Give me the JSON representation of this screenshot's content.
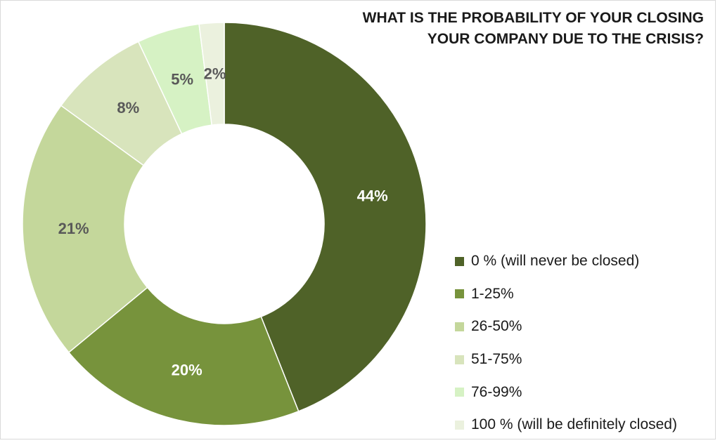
{
  "chart_data": {
    "type": "pie",
    "variant": "donut",
    "title": "WHAT IS THE PROBABILITY OF YOUR CLOSING YOUR COMPANY DUE TO THE CRISIS?",
    "title_lines": [
      "WHAT IS THE PROBABILITY OF YOUR CLOSING",
      "YOUR COMPANY DUE TO THE CRISIS?"
    ],
    "legend_position": "right",
    "slices": [
      {
        "label": "0 % (will never be closed)",
        "value": 44,
        "data_label": "44%",
        "color": "#4f6228",
        "label_color": "#ffffff"
      },
      {
        "label": "1-25%",
        "value": 20,
        "data_label": "20%",
        "color": "#77933c",
        "label_color": "#ffffff"
      },
      {
        "label": "26-50%",
        "value": 21,
        "data_label": "21%",
        "color": "#c4d79b",
        "label_color": "#595959"
      },
      {
        "label": "51-75%",
        "value": 8,
        "data_label": "8%",
        "color": "#d8e4bc",
        "label_color": "#595959"
      },
      {
        "label": "76-99%",
        "value": 5,
        "data_label": "5%",
        "color": "#d6f2c4",
        "label_color": "#595959"
      },
      {
        "label": "100 % (will be definitely closed)",
        "value": 2,
        "data_label": "2%",
        "color": "#ebf1de",
        "label_color": "#595959"
      }
    ]
  }
}
